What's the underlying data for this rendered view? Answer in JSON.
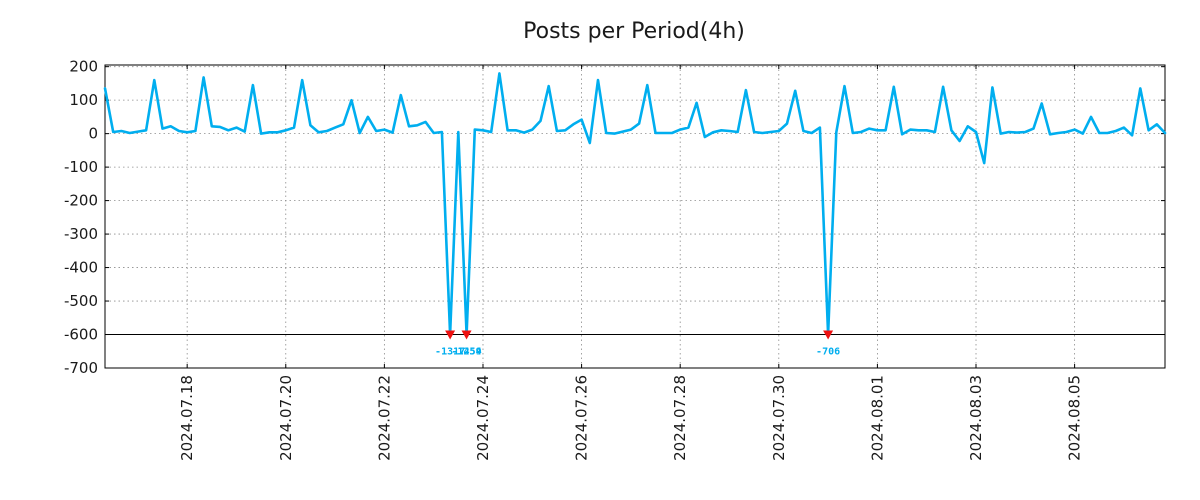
{
  "colors": {
    "line": "#00aeef",
    "marker": "#ee1111",
    "annotation": "#00aeef",
    "axis": "#000000",
    "grid": "#8c8c8c",
    "text": "#1a1a1a"
  },
  "chart_data": {
    "type": "line",
    "title": "Posts per Period(4h)",
    "xlabel": "",
    "ylabel": "",
    "grid": true,
    "ylim": [
      -700,
      205
    ],
    "xlim": [
      0,
      129
    ],
    "yticks": [
      200,
      100,
      0,
      -100,
      -200,
      -300,
      -400,
      -500,
      -600,
      -700
    ],
    "ytick_labels": [
      "200",
      "100",
      "0",
      "-100",
      "-200",
      "-300",
      "-400",
      "-500",
      "-600",
      "-700"
    ],
    "xticks": [
      {
        "x": 10,
        "label": "2024.07.18"
      },
      {
        "x": 22,
        "label": "2024.07.20"
      },
      {
        "x": 34,
        "label": "2024.07.22"
      },
      {
        "x": 46,
        "label": "2024.07.24"
      },
      {
        "x": 58,
        "label": "2024.07.26"
      },
      {
        "x": 70,
        "label": "2024.07.28"
      },
      {
        "x": 82,
        "label": "2024.07.30"
      },
      {
        "x": 94,
        "label": "2024.08.01"
      },
      {
        "x": 106,
        "label": "2024.08.03"
      },
      {
        "x": 118,
        "label": "2024.08.05"
      }
    ],
    "reference_line": -600,
    "series": [
      {
        "name": "posts",
        "values": [
          135,
          5,
          8,
          2,
          6,
          10,
          160,
          15,
          22,
          8,
          4,
          8,
          168,
          22,
          20,
          10,
          18,
          6,
          145,
          0,
          4,
          4,
          10,
          18,
          160,
          25,
          4,
          8,
          18,
          28,
          100,
          2,
          50,
          8,
          12,
          3,
          115,
          22,
          25,
          35,
          2,
          5,
          -600,
          5,
          -600,
          12,
          10,
          5,
          180,
          10,
          10,
          3,
          12,
          38,
          142,
          8,
          10,
          28,
          42,
          -28,
          160,
          2,
          0,
          6,
          12,
          30,
          145,
          2,
          2,
          2,
          12,
          18,
          92,
          -10,
          4,
          10,
          8,
          5,
          130,
          5,
          2,
          5,
          8,
          30,
          128,
          8,
          2,
          18,
          -600,
          4,
          142,
          2,
          5,
          15,
          10,
          10,
          140,
          -2,
          12,
          10,
          10,
          5,
          140,
          10,
          -22,
          22,
          5,
          -88,
          138,
          0,
          5,
          3,
          5,
          15,
          90,
          -2,
          2,
          5,
          12,
          0,
          50,
          2,
          2,
          8,
          18,
          -5,
          135,
          10,
          28,
          2
        ]
      }
    ],
    "annotations": [
      {
        "x": 42,
        "y": -600,
        "label": "-1317"
      },
      {
        "x": 44,
        "y": -600,
        "label": "-1254"
      },
      {
        "x": 44,
        "y": -600,
        "label": "-1459"
      },
      {
        "x": 88,
        "y": -600,
        "label": "-706"
      }
    ]
  }
}
